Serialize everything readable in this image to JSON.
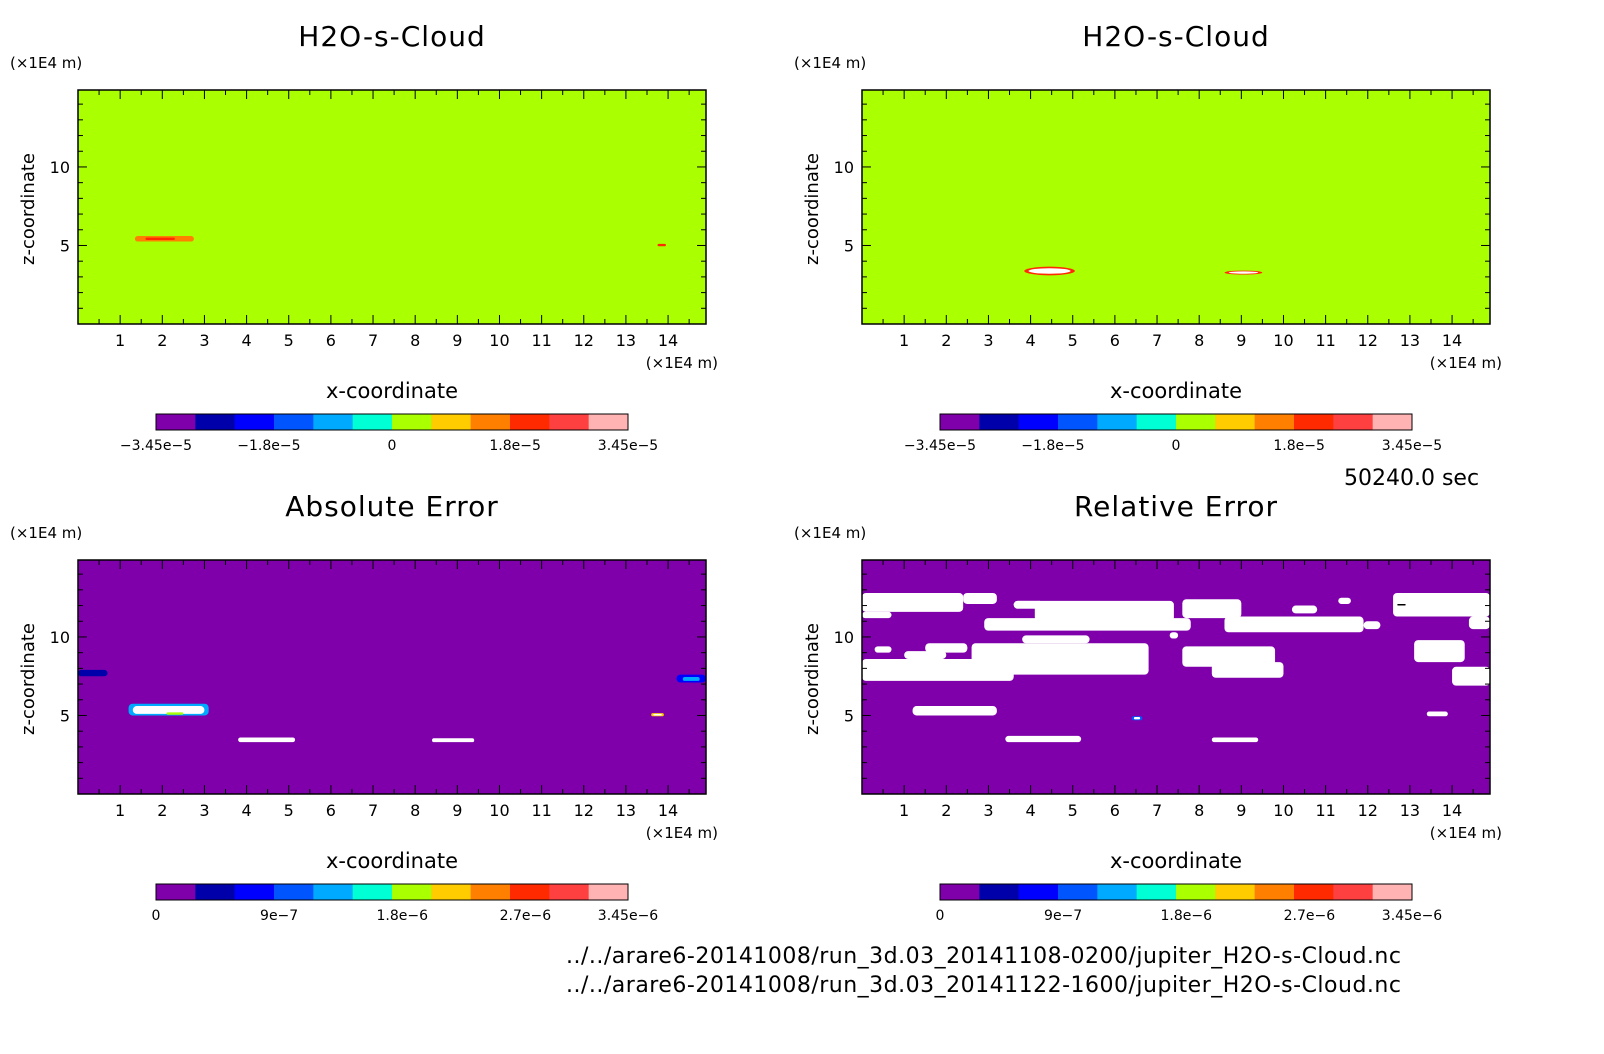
{
  "figure": {
    "time_label": "50240.0 sec",
    "file_lines": [
      "../../arare6-20141008/run_3d.03_20141108-0200/jupiter_H2O-s-Cloud.nc",
      "../../arare6-20141008/run_3d.03_20141122-1600/jupiter_H2O-s-Cloud.nc"
    ]
  },
  "colors": {
    "field_fill": "#aaff00",
    "error_fill": "#7f00aa",
    "missing": "#ffffff",
    "colorbar": [
      "#7f00aa",
      "#0000aa",
      "#0000ff",
      "#0055ff",
      "#00aaff",
      "#00ffd5",
      "#aaff00",
      "#ffcc00",
      "#ff7f00",
      "#ff2a00",
      "#ff4040",
      "#ffb3b3"
    ]
  },
  "chart_data": [
    {
      "type": "heatmap",
      "title": "H2O-s-Cloud",
      "xlabel": "x-coordinate",
      "ylabel": "z-coordinate",
      "x_unit": "(×1E4 m)",
      "y_unit": "(×1E4 m)",
      "xlim": [
        0,
        14.9
      ],
      "ylim": [
        0,
        14.9
      ],
      "xticks": [
        1,
        2,
        3,
        4,
        5,
        6,
        7,
        8,
        9,
        10,
        11,
        12,
        13,
        14
      ],
      "yticks": [
        5,
        10
      ],
      "background": "field",
      "features": [
        {
          "kind": "patch",
          "x": [
            1.35,
            2.75
          ],
          "z": [
            5.25,
            5.6
          ],
          "color": "#ff7f00"
        },
        {
          "kind": "patch",
          "x": [
            1.6,
            2.3
          ],
          "z": [
            5.35,
            5.5
          ],
          "color": "#ff2a00"
        },
        {
          "kind": "patch",
          "x": [
            13.75,
            13.95
          ],
          "z": [
            4.95,
            5.1
          ],
          "color": "#ff2a00"
        }
      ],
      "colorbar": {
        "min": -3.45e-05,
        "max": 3.45e-05,
        "ticks": [
          -3.45e-05,
          -1.8e-05,
          0,
          1.8e-05,
          3.45e-05
        ],
        "tick_labels": [
          "−3.45e−5",
          "−1.8e−5",
          "0",
          "1.8e−5",
          "3.45e−5"
        ]
      }
    },
    {
      "type": "heatmap",
      "title": "H2O-s-Cloud",
      "xlabel": "x-coordinate",
      "ylabel": "z-coordinate",
      "x_unit": "(×1E4 m)",
      "y_unit": "(×1E4 m)",
      "xlim": [
        0,
        14.9
      ],
      "ylim": [
        0,
        14.9
      ],
      "xticks": [
        1,
        2,
        3,
        4,
        5,
        6,
        7,
        8,
        9,
        10,
        11,
        12,
        13,
        14
      ],
      "yticks": [
        5,
        10
      ],
      "background": "field",
      "features": [
        {
          "kind": "blob",
          "x": [
            3.85,
            5.05
          ],
          "z": [
            3.1,
            3.65
          ],
          "color": "#ff2a00"
        },
        {
          "kind": "blob",
          "x": [
            3.95,
            4.95
          ],
          "z": [
            3.2,
            3.55
          ],
          "color": "#ffffff"
        },
        {
          "kind": "blob",
          "x": [
            8.6,
            9.5
          ],
          "z": [
            3.15,
            3.4
          ],
          "color": "#ff2a00"
        },
        {
          "kind": "blob",
          "x": [
            8.7,
            9.4
          ],
          "z": [
            3.2,
            3.35
          ],
          "color": "#ffffff"
        }
      ],
      "colorbar": {
        "min": -3.45e-05,
        "max": 3.45e-05,
        "ticks": [
          -3.45e-05,
          -1.8e-05,
          0,
          1.8e-05,
          3.45e-05
        ],
        "tick_labels": [
          "−3.45e−5",
          "−1.8e−5",
          "0",
          "1.8e−5",
          "3.45e−5"
        ]
      }
    },
    {
      "type": "heatmap",
      "title": "Absolute Error",
      "xlabel": "x-coordinate",
      "ylabel": "z-coordinate",
      "x_unit": "(×1E4 m)",
      "y_unit": "(×1E4 m)",
      "xlim": [
        0,
        14.9
      ],
      "ylim": [
        0,
        14.9
      ],
      "xticks": [
        1,
        2,
        3,
        4,
        5,
        6,
        7,
        8,
        9,
        10,
        11,
        12,
        13,
        14
      ],
      "yticks": [
        5,
        10
      ],
      "background": "error",
      "features": [
        {
          "kind": "patch",
          "x": [
            1.2,
            3.1
          ],
          "z": [
            5.0,
            5.75
          ],
          "color": "#00aaff"
        },
        {
          "kind": "patch",
          "x": [
            1.3,
            3.0
          ],
          "z": [
            5.1,
            5.6
          ],
          "color": "#ffffff"
        },
        {
          "kind": "patch",
          "x": [
            2.1,
            2.5
          ],
          "z": [
            5.05,
            5.2
          ],
          "color": "#aaff00"
        },
        {
          "kind": "patch",
          "x": [
            3.8,
            5.15
          ],
          "z": [
            3.3,
            3.6
          ],
          "color": "#ffffff"
        },
        {
          "kind": "patch",
          "x": [
            8.4,
            9.4
          ],
          "z": [
            3.3,
            3.55
          ],
          "color": "#ffffff"
        },
        {
          "kind": "patch",
          "x": [
            0.0,
            0.7
          ],
          "z": [
            7.5,
            7.9
          ],
          "color": "#0000aa"
        },
        {
          "kind": "patch",
          "x": [
            14.2,
            14.9
          ],
          "z": [
            7.1,
            7.6
          ],
          "color": "#0000ff"
        },
        {
          "kind": "patch",
          "x": [
            14.35,
            14.75
          ],
          "z": [
            7.2,
            7.45
          ],
          "color": "#00aaff"
        },
        {
          "kind": "patch",
          "x": [
            13.6,
            13.9
          ],
          "z": [
            4.95,
            5.15
          ],
          "color": "#ffcc00"
        },
        {
          "kind": "patch",
          "x": [
            13.65,
            13.85
          ],
          "z": [
            5.0,
            5.1
          ],
          "color": "#ffffff"
        }
      ],
      "colorbar": {
        "min": 0,
        "max": 3.45e-06,
        "ticks": [
          0,
          9e-07,
          1.8e-06,
          2.7e-06,
          3.45e-06
        ],
        "tick_labels": [
          "0",
          "9e−7",
          "1.8e−6",
          "2.7e−6",
          "3.45e−6"
        ]
      }
    },
    {
      "type": "heatmap",
      "title": "Relative Error",
      "xlabel": "x-coordinate",
      "ylabel": "z-coordinate",
      "x_unit": "(×1E4 m)",
      "y_unit": "(×1E4 m)",
      "xlim": [
        0,
        14.9
      ],
      "ylim": [
        0,
        14.9
      ],
      "xticks": [
        1,
        2,
        3,
        4,
        5,
        6,
        7,
        8,
        9,
        10,
        11,
        12,
        13,
        14
      ],
      "yticks": [
        5,
        10
      ],
      "background": "error",
      "features": [
        {
          "kind": "patch",
          "x": [
            0.0,
            2.4
          ],
          "z": [
            11.6,
            12.8
          ],
          "color": "#ffffff"
        },
        {
          "kind": "patch",
          "x": [
            2.4,
            3.2
          ],
          "z": [
            12.1,
            12.8
          ],
          "color": "#ffffff"
        },
        {
          "kind": "patch",
          "x": [
            3.6,
            4.3
          ],
          "z": [
            11.8,
            12.3
          ],
          "color": "#ffffff"
        },
        {
          "kind": "patch",
          "x": [
            0.0,
            0.7
          ],
          "z": [
            11.2,
            11.6
          ],
          "color": "#ffffff"
        },
        {
          "kind": "patch",
          "x": [
            3.6,
            4.3
          ],
          "z": [
            11.8,
            12.3
          ],
          "color": "#ffffff"
        },
        {
          "kind": "patch",
          "x": [
            2.9,
            7.8
          ],
          "z": [
            10.4,
            11.2
          ],
          "color": "#ffffff"
        },
        {
          "kind": "patch",
          "x": [
            4.1,
            7.4
          ],
          "z": [
            11.0,
            12.3
          ],
          "color": "#ffffff"
        },
        {
          "kind": "patch",
          "x": [
            7.6,
            9.0
          ],
          "z": [
            11.2,
            12.4
          ],
          "color": "#ffffff"
        },
        {
          "kind": "patch",
          "x": [
            8.6,
            11.9
          ],
          "z": [
            10.3,
            11.3
          ],
          "color": "#ffffff"
        },
        {
          "kind": "patch",
          "x": [
            11.9,
            12.3
          ],
          "z": [
            10.5,
            11.0
          ],
          "color": "#ffffff"
        },
        {
          "kind": "patch",
          "x": [
            10.2,
            10.8
          ],
          "z": [
            11.5,
            12.0
          ],
          "color": "#ffffff"
        },
        {
          "kind": "patch",
          "x": [
            11.3,
            11.6
          ],
          "z": [
            12.1,
            12.5
          ],
          "color": "#ffffff"
        },
        {
          "kind": "patch",
          "x": [
            12.6,
            14.9
          ],
          "z": [
            11.3,
            12.8
          ],
          "color": "#ffffff"
        },
        {
          "kind": "patch",
          "x": [
            14.4,
            14.9
          ],
          "z": [
            10.5,
            11.3
          ],
          "color": "#ffffff"
        },
        {
          "kind": "patch",
          "x": [
            0.0,
            3.6
          ],
          "z": [
            7.2,
            8.6
          ],
          "color": "#ffffff"
        },
        {
          "kind": "patch",
          "x": [
            1.0,
            2.0
          ],
          "z": [
            8.6,
            9.1
          ],
          "color": "#ffffff"
        },
        {
          "kind": "patch",
          "x": [
            0.3,
            0.7
          ],
          "z": [
            9.0,
            9.4
          ],
          "color": "#ffffff"
        },
        {
          "kind": "patch",
          "x": [
            1.5,
            2.5
          ],
          "z": [
            9.0,
            9.6
          ],
          "color": "#ffffff"
        },
        {
          "kind": "patch",
          "x": [
            2.6,
            6.8
          ],
          "z": [
            7.6,
            9.6
          ],
          "color": "#ffffff"
        },
        {
          "kind": "patch",
          "x": [
            3.8,
            5.4
          ],
          "z": [
            9.6,
            10.1
          ],
          "color": "#ffffff"
        },
        {
          "kind": "patch",
          "x": [
            7.6,
            9.8
          ],
          "z": [
            8.1,
            9.4
          ],
          "color": "#ffffff"
        },
        {
          "kind": "patch",
          "x": [
            8.3,
            10.0
          ],
          "z": [
            7.4,
            8.4
          ],
          "color": "#ffffff"
        },
        {
          "kind": "patch",
          "x": [
            7.3,
            7.5
          ],
          "z": [
            9.9,
            10.3
          ],
          "color": "#ffffff"
        },
        {
          "kind": "patch",
          "x": [
            13.1,
            14.3
          ],
          "z": [
            8.4,
            9.8
          ],
          "color": "#ffffff"
        },
        {
          "kind": "patch",
          "x": [
            14.0,
            14.9
          ],
          "z": [
            6.9,
            8.1
          ],
          "color": "#ffffff"
        },
        {
          "kind": "patch",
          "x": [
            1.2,
            3.2
          ],
          "z": [
            5.0,
            5.6
          ],
          "color": "#ffffff"
        },
        {
          "kind": "patch",
          "x": [
            3.4,
            5.2
          ],
          "z": [
            3.3,
            3.7
          ],
          "color": "#ffffff"
        },
        {
          "kind": "patch",
          "x": [
            8.3,
            9.4
          ],
          "z": [
            3.3,
            3.6
          ],
          "color": "#ffffff"
        },
        {
          "kind": "patch",
          "x": [
            13.4,
            13.9
          ],
          "z": [
            4.95,
            5.25
          ],
          "color": "#ffffff"
        },
        {
          "kind": "patch",
          "x": [
            6.4,
            6.65
          ],
          "z": [
            4.7,
            4.95
          ],
          "color": "#0055ff"
        },
        {
          "kind": "patch",
          "x": [
            6.45,
            6.6
          ],
          "z": [
            4.75,
            4.9
          ],
          "color": "#ffffff"
        },
        {
          "kind": "patch",
          "x": [
            12.7,
            12.9
          ],
          "z": [
            12.0,
            12.1
          ],
          "color": "#000000"
        }
      ],
      "colorbar": {
        "min": 0,
        "max": 3.45e-06,
        "ticks": [
          0,
          9e-07,
          1.8e-06,
          2.7e-06,
          3.45e-06
        ],
        "tick_labels": [
          "0",
          "9e−7",
          "1.8e−6",
          "2.7e−6",
          "3.45e−6"
        ]
      }
    }
  ]
}
